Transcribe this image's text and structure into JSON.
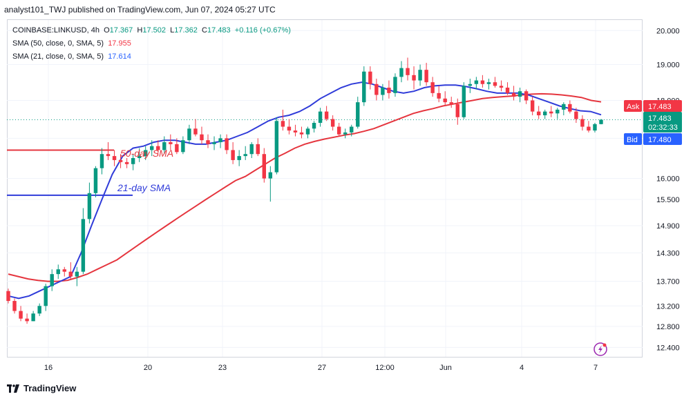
{
  "header": {
    "publisher": "analyst101_TWJ published on TradingView.com, Jun 07, 2024 05:27 UTC"
  },
  "legend": {
    "symbol": "COINBASE:LINKUSD, 4h",
    "o_label": "O",
    "open": "17.367",
    "h_label": "H",
    "high": "17.502",
    "l_label": "L",
    "low": "17.362",
    "c_label": "C",
    "close": "17.483",
    "change": "+0.116 (+0.67%)",
    "sma50_label": "SMA (50, close, 0, SMA, 5)",
    "sma50_value": "17.955",
    "sma21_label": "SMA (21, close, 0, SMA, 5)",
    "sma21_value": "17.614"
  },
  "annotations": {
    "sma50_text": "50-day SMA",
    "sma21_text": "21-day SMA"
  },
  "price_tags": {
    "ask_label": "Ask",
    "ask_value": "17.483",
    "last_value": "17.483",
    "countdown": "02:32:33",
    "bid_label": "Bid",
    "bid_value": "17.480"
  },
  "footer": {
    "brand": "TradingView"
  },
  "colors": {
    "up": "#089981",
    "down": "#f23645",
    "sma50": "#e5353e",
    "sma21": "#2f3bd9",
    "grid": "#f0f3fa",
    "ask": "#f23645",
    "bid": "#2962ff",
    "last": "#089981"
  },
  "chart_data": {
    "type": "candlestick",
    "title": "COINBASE:LINKUSD, 4h",
    "x_tick_labels": [
      "16",
      "20",
      "23",
      "27",
      "12:00",
      "Jun",
      "4",
      "7"
    ],
    "y_tick_labels": [
      "20.000",
      "19.000",
      "18.000",
      "17.000",
      "16.000",
      "15.500",
      "14.900",
      "14.300",
      "13.700",
      "13.200",
      "12.800",
      "12.400"
    ],
    "y_tick_values": [
      20.0,
      19.0,
      18.0,
      17.0,
      16.0,
      15.5,
      14.9,
      14.3,
      13.7,
      13.2,
      12.8,
      12.4
    ],
    "y_scale": "log",
    "ylim": [
      12.25,
      20.3
    ],
    "candles": [
      [
        13.5,
        13.55,
        13.25,
        13.3
      ],
      [
        13.3,
        13.35,
        13.05,
        13.1
      ],
      [
        13.1,
        13.2,
        12.9,
        12.95
      ],
      [
        12.95,
        13.05,
        12.85,
        12.9
      ],
      [
        12.9,
        13.1,
        12.9,
        13.05
      ],
      [
        13.05,
        13.25,
        13.0,
        13.2
      ],
      [
        13.2,
        13.65,
        13.1,
        13.6
      ],
      [
        13.6,
        13.95,
        13.5,
        13.85
      ],
      [
        13.85,
        14.05,
        13.75,
        13.95
      ],
      [
        13.95,
        14.0,
        13.8,
        13.9
      ],
      [
        13.9,
        14.1,
        13.75,
        13.8
      ],
      [
        13.8,
        14.0,
        13.6,
        13.9
      ],
      [
        13.9,
        15.3,
        13.85,
        15.05
      ],
      [
        15.05,
        15.9,
        14.95,
        15.65
      ],
      [
        15.65,
        16.3,
        15.55,
        16.25
      ],
      [
        16.25,
        16.75,
        16.1,
        16.6
      ],
      [
        16.6,
        16.9,
        16.45,
        16.55
      ],
      [
        16.55,
        16.7,
        16.3,
        16.45
      ],
      [
        16.45,
        16.6,
        16.25,
        16.4
      ],
      [
        16.4,
        16.5,
        16.25,
        16.35
      ],
      [
        16.35,
        16.6,
        16.2,
        16.5
      ],
      [
        16.5,
        16.75,
        16.4,
        16.55
      ],
      [
        16.55,
        16.8,
        16.45,
        16.7
      ],
      [
        16.7,
        16.95,
        16.55,
        16.8
      ],
      [
        16.8,
        16.95,
        16.6,
        16.7
      ],
      [
        16.7,
        17.05,
        16.6,
        16.9
      ],
      [
        16.9,
        17.1,
        16.7,
        16.85
      ],
      [
        16.85,
        17.0,
        16.6,
        16.65
      ],
      [
        16.65,
        17.05,
        16.6,
        16.95
      ],
      [
        16.95,
        17.35,
        16.85,
        17.25
      ],
      [
        17.25,
        17.5,
        17.05,
        17.1
      ],
      [
        17.1,
        17.3,
        16.85,
        16.95
      ],
      [
        16.95,
        17.1,
        16.75,
        16.85
      ],
      [
        16.85,
        17.05,
        16.7,
        16.9
      ],
      [
        16.9,
        17.1,
        16.75,
        17.0
      ],
      [
        17.0,
        17.1,
        16.6,
        16.7
      ],
      [
        16.7,
        16.9,
        16.35,
        16.45
      ],
      [
        16.45,
        16.7,
        16.3,
        16.55
      ],
      [
        16.55,
        16.8,
        16.45,
        16.6
      ],
      [
        16.6,
        16.9,
        16.5,
        16.85
      ],
      [
        16.85,
        17.0,
        16.55,
        16.6
      ],
      [
        16.6,
        16.75,
        15.9,
        16.0
      ],
      [
        16.0,
        16.3,
        15.45,
        16.15
      ],
      [
        16.15,
        17.55,
        16.1,
        17.45
      ],
      [
        17.45,
        17.75,
        17.2,
        17.3
      ],
      [
        17.3,
        17.5,
        17.1,
        17.2
      ],
      [
        17.2,
        17.35,
        17.05,
        17.15
      ],
      [
        17.15,
        17.3,
        17.0,
        17.1
      ],
      [
        17.1,
        17.3,
        17.0,
        17.25
      ],
      [
        17.25,
        17.45,
        17.15,
        17.4
      ],
      [
        17.4,
        17.8,
        17.3,
        17.7
      ],
      [
        17.7,
        17.85,
        17.45,
        17.5
      ],
      [
        17.5,
        17.6,
        17.2,
        17.3
      ],
      [
        17.3,
        17.4,
        17.05,
        17.1
      ],
      [
        17.1,
        17.25,
        17.0,
        17.15
      ],
      [
        17.15,
        17.35,
        17.05,
        17.3
      ],
      [
        17.3,
        18.1,
        17.25,
        17.95
      ],
      [
        17.95,
        18.95,
        17.85,
        18.8
      ],
      [
        18.8,
        18.95,
        18.3,
        18.45
      ],
      [
        18.45,
        18.6,
        18.0,
        18.15
      ],
      [
        18.15,
        18.45,
        18.0,
        18.35
      ],
      [
        18.35,
        18.55,
        18.05,
        18.2
      ],
      [
        18.2,
        18.75,
        18.1,
        18.65
      ],
      [
        18.65,
        19.1,
        18.5,
        18.9
      ],
      [
        18.9,
        19.2,
        18.55,
        18.7
      ],
      [
        18.7,
        18.95,
        18.3,
        18.55
      ],
      [
        18.55,
        19.0,
        18.4,
        18.85
      ],
      [
        18.85,
        19.05,
        18.4,
        18.5
      ],
      [
        18.5,
        18.65,
        18.1,
        18.2
      ],
      [
        18.2,
        18.4,
        17.95,
        18.05
      ],
      [
        18.05,
        18.25,
        17.85,
        17.95
      ],
      [
        17.95,
        18.1,
        17.8,
        17.9
      ],
      [
        17.9,
        18.05,
        17.35,
        17.55
      ],
      [
        17.55,
        18.5,
        17.5,
        18.4
      ],
      [
        18.4,
        18.6,
        18.2,
        18.45
      ],
      [
        18.45,
        18.65,
        18.3,
        18.55
      ],
      [
        18.55,
        18.7,
        18.35,
        18.45
      ],
      [
        18.45,
        18.6,
        18.3,
        18.5
      ],
      [
        18.5,
        18.65,
        18.35,
        18.4
      ],
      [
        18.4,
        18.55,
        18.25,
        18.35
      ],
      [
        18.35,
        18.5,
        18.15,
        18.2
      ],
      [
        18.2,
        18.4,
        18.0,
        18.1
      ],
      [
        18.1,
        18.35,
        17.95,
        18.25
      ],
      [
        18.25,
        18.3,
        17.9,
        18.0
      ],
      [
        18.0,
        18.1,
        17.6,
        17.7
      ],
      [
        17.7,
        17.85,
        17.5,
        17.6
      ],
      [
        17.6,
        17.75,
        17.5,
        17.7
      ],
      [
        17.7,
        17.85,
        17.55,
        17.65
      ],
      [
        17.65,
        17.8,
        17.5,
        17.75
      ],
      [
        17.75,
        17.95,
        17.6,
        17.9
      ],
      [
        17.9,
        18.0,
        17.65,
        17.7
      ],
      [
        17.7,
        17.8,
        17.4,
        17.5
      ],
      [
        17.5,
        17.6,
        17.2,
        17.3
      ],
      [
        17.3,
        17.45,
        17.15,
        17.2
      ],
      [
        17.2,
        17.4,
        17.15,
        17.367
      ],
      [
        17.367,
        17.502,
        17.362,
        17.483
      ]
    ],
    "series": [
      {
        "name": "SMA (50, close, 0, SMA, 5)",
        "values": [
          13.85,
          13.8,
          13.75,
          13.72,
          13.7,
          13.7,
          13.72,
          13.78,
          13.85,
          13.95,
          14.05,
          14.15,
          14.3,
          14.45,
          14.6,
          14.75,
          14.9,
          15.05,
          15.2,
          15.35,
          15.5,
          15.65,
          15.8,
          15.95,
          16.05,
          16.2,
          16.35,
          16.5,
          16.62,
          16.75,
          16.85,
          16.92,
          16.98,
          17.03,
          17.08,
          17.12,
          17.18,
          17.25,
          17.35,
          17.45,
          17.55,
          17.65,
          17.72,
          17.78,
          17.85,
          17.9,
          17.95,
          18.0,
          18.05,
          18.08,
          18.1,
          18.12,
          18.15,
          18.17,
          18.18,
          18.17,
          18.15,
          18.12,
          18.08,
          18.0,
          17.96
        ]
      },
      {
        "name": "SMA (21, close, 0, SMA, 5)",
        "values": [
          13.4,
          13.35,
          13.4,
          13.5,
          13.6,
          13.7,
          13.8,
          14.3,
          14.9,
          15.5,
          16.1,
          16.55,
          16.75,
          16.8,
          16.9,
          16.95,
          16.95,
          16.9,
          16.85,
          16.85,
          16.9,
          16.95,
          17.05,
          17.15,
          17.3,
          17.45,
          17.55,
          17.6,
          17.7,
          17.85,
          18.05,
          18.2,
          18.35,
          18.45,
          18.5,
          18.45,
          18.35,
          18.25,
          18.2,
          18.25,
          18.35,
          18.4,
          18.42,
          18.42,
          18.38,
          18.32,
          18.25,
          18.2,
          18.2,
          18.2,
          18.15,
          18.05,
          17.95,
          17.85,
          17.78,
          17.72,
          17.7,
          17.614
        ]
      }
    ],
    "last_price": 17.483
  }
}
